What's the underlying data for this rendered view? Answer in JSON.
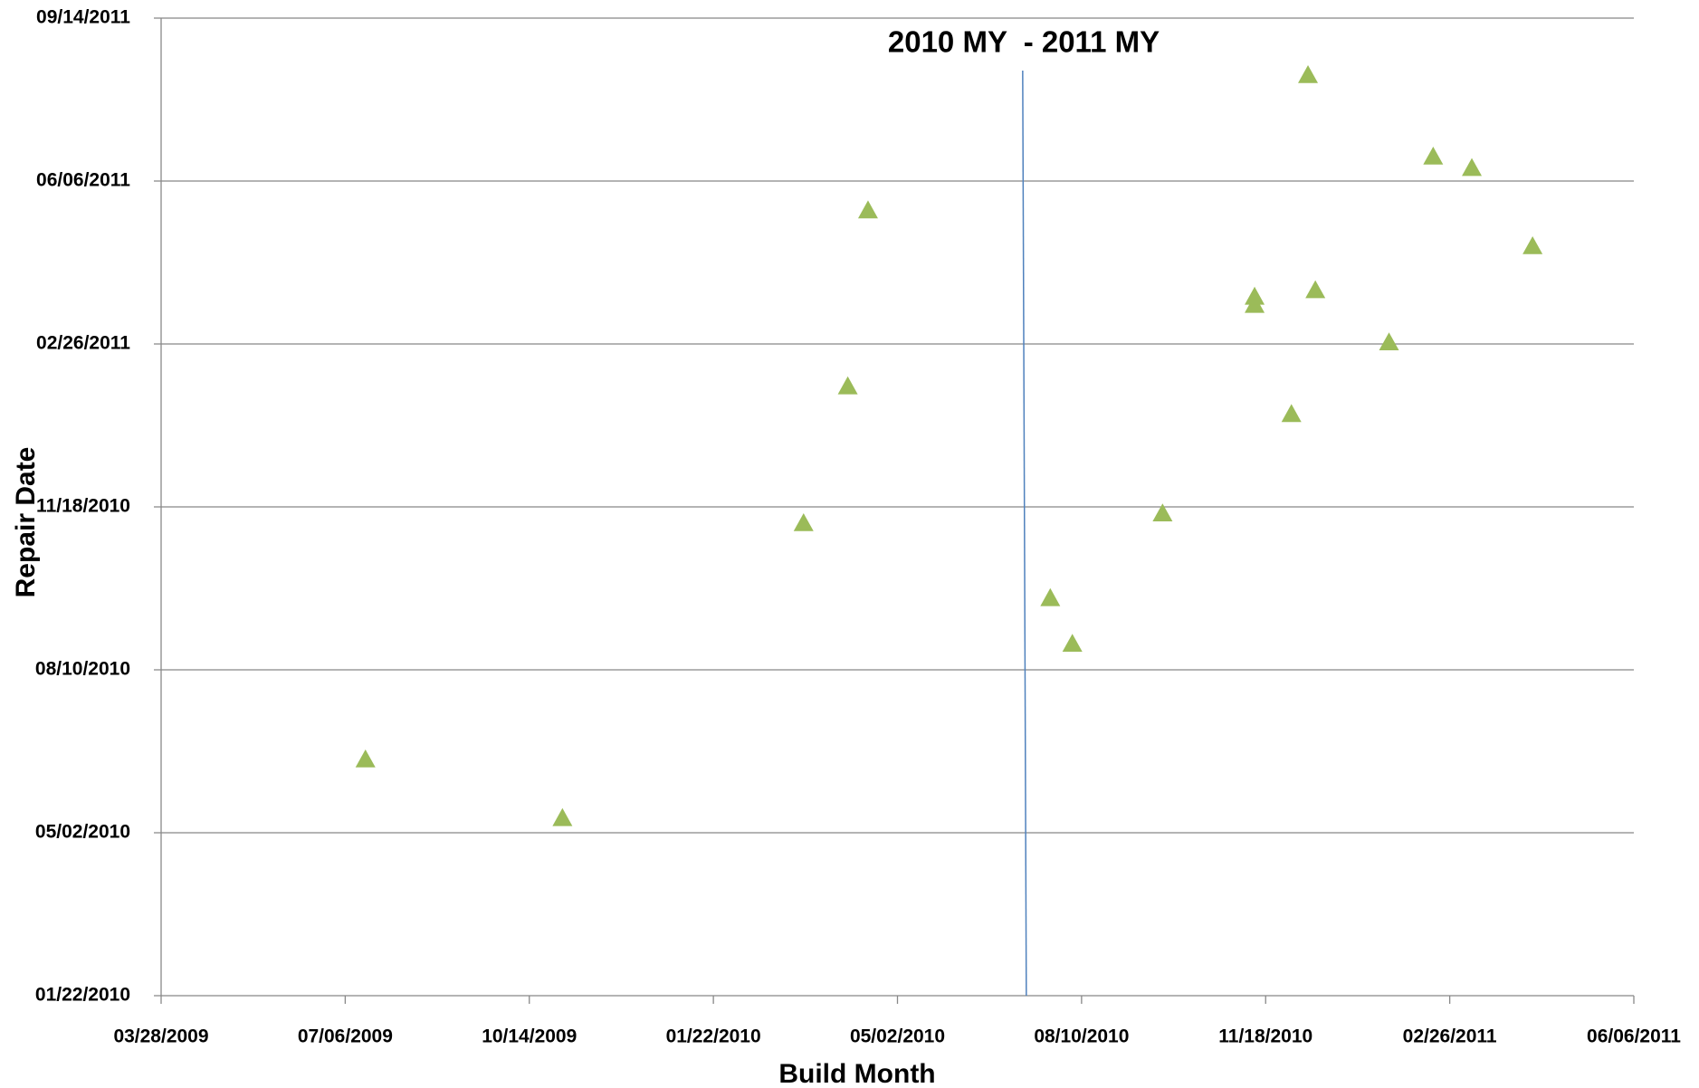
{
  "chart_data": {
    "type": "scatter",
    "xlabel": "Build Month",
    "ylabel": "Repair Date",
    "x": [
      "07/17/2009",
      "11/01/2009",
      "03/12/2010",
      "04/05/2010",
      "04/16/2010",
      "07/24/2010",
      "08/05/2010",
      "09/23/2010",
      "11/12/2010",
      "11/12/2010",
      "12/02/2010",
      "12/11/2010",
      "12/15/2010",
      "01/24/2011",
      "02/17/2011",
      "03/10/2011",
      "04/12/2011"
    ],
    "values": [
      "06/16/2010",
      "05/11/2010",
      "11/08/2010",
      "01/31/2011",
      "05/19/2011",
      "09/23/2010",
      "08/26/2010",
      "11/14/2010",
      "03/22/2011",
      "03/27/2011",
      "01/14/2011",
      "08/10/2011",
      "03/31/2011",
      "02/27/2011",
      "06/21/2011",
      "06/14/2011",
      "04/27/2011"
    ],
    "color": "#9bbb59",
    "xlim": [
      "03/28/2009",
      "06/06/2011"
    ],
    "xticks": [
      "03/28/2009",
      "07/06/2009",
      "10/14/2009",
      "01/22/2010",
      "05/02/2010",
      "08/10/2010",
      "11/18/2010",
      "02/26/2011",
      "06/06/2011"
    ],
    "ylim": [
      "01/22/2010",
      "09/14/2011"
    ],
    "yticks": [
      "01/22/2010",
      "05/02/2010",
      "08/10/2010",
      "11/18/2010",
      "02/26/2011",
      "06/06/2011",
      "09/14/2011"
    ],
    "grid": true,
    "annotation": {
      "text": "2010 MY  - 2011 MY",
      "x": "07/10/2010",
      "color": "#4f81bd"
    }
  }
}
